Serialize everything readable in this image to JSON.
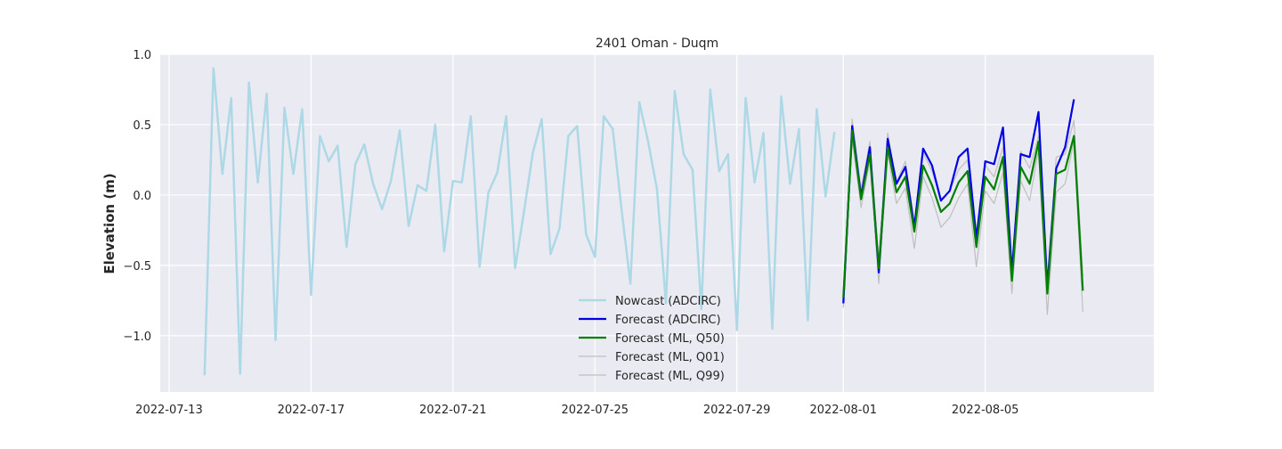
{
  "chart_data": {
    "type": "line",
    "title": "2401 Oman - Duqm",
    "xlabel": "",
    "ylabel": "Elevation (m)",
    "xlim": [
      "2022-07-12T18:00",
      "2022-08-09T18:00"
    ],
    "ylim": [
      -1.4,
      1.0
    ],
    "x_ticks": [
      "2022-07-13",
      "2022-07-17",
      "2022-07-21",
      "2022-07-25",
      "2022-07-29",
      "2022-08-01",
      "2022-08-05"
    ],
    "y_ticks": [
      -1.0,
      -0.5,
      0.0,
      0.5,
      1.0
    ],
    "y_tick_labels": [
      "−1.0",
      "−0.5",
      "0.0",
      "0.5",
      "1.0"
    ],
    "grid": true,
    "legend_position": "lower-center",
    "series": [
      {
        "name": "Nowcast (ADCIRC)",
        "color": "#add8e6",
        "style": "solid",
        "x": [
          "2022-07-14T00:00",
          "2022-07-14T06:00",
          "2022-07-14T12:00",
          "2022-07-14T18:00",
          "2022-07-15T00:00",
          "2022-07-15T06:00",
          "2022-07-15T12:00",
          "2022-07-15T18:00",
          "2022-07-16T00:00",
          "2022-07-16T06:00",
          "2022-07-16T12:00",
          "2022-07-16T18:00",
          "2022-07-17T00:00",
          "2022-07-17T06:00",
          "2022-07-17T12:00",
          "2022-07-17T18:00",
          "2022-07-18T00:00",
          "2022-07-18T06:00",
          "2022-07-18T12:00",
          "2022-07-18T18:00",
          "2022-07-19T00:00",
          "2022-07-19T06:00",
          "2022-07-19T12:00",
          "2022-07-19T18:00",
          "2022-07-20T00:00",
          "2022-07-20T06:00",
          "2022-07-20T12:00",
          "2022-07-20T18:00",
          "2022-07-21T00:00",
          "2022-07-21T06:00",
          "2022-07-21T12:00",
          "2022-07-21T18:00",
          "2022-07-22T00:00",
          "2022-07-22T06:00",
          "2022-07-22T12:00",
          "2022-07-22T18:00",
          "2022-07-23T00:00",
          "2022-07-23T06:00",
          "2022-07-23T12:00",
          "2022-07-23T18:00",
          "2022-07-24T00:00",
          "2022-07-24T06:00",
          "2022-07-24T12:00",
          "2022-07-24T18:00",
          "2022-07-25T00:00",
          "2022-07-25T06:00",
          "2022-07-25T12:00",
          "2022-07-25T18:00",
          "2022-07-26T00:00",
          "2022-07-26T06:00",
          "2022-07-26T12:00",
          "2022-07-26T18:00",
          "2022-07-27T00:00",
          "2022-07-27T06:00",
          "2022-07-27T12:00",
          "2022-07-27T18:00",
          "2022-07-28T00:00",
          "2022-07-28T06:00",
          "2022-07-28T12:00",
          "2022-07-28T18:00",
          "2022-07-29T00:00",
          "2022-07-29T06:00",
          "2022-07-29T12:00",
          "2022-07-29T18:00",
          "2022-07-30T00:00",
          "2022-07-30T06:00",
          "2022-07-30T12:00",
          "2022-07-30T18:00",
          "2022-07-31T00:00",
          "2022-07-31T06:00",
          "2022-07-31T12:00",
          "2022-07-31T18:00"
        ],
        "values": [
          -1.28,
          0.9,
          0.15,
          0.69,
          -1.27,
          0.8,
          0.09,
          0.72,
          -1.03,
          0.62,
          0.15,
          0.61,
          -0.71,
          0.42,
          0.24,
          0.35,
          -0.37,
          0.22,
          0.36,
          0.08,
          -0.1,
          0.1,
          0.46,
          -0.22,
          0.07,
          0.03,
          0.5,
          -0.4,
          0.1,
          0.09,
          0.56,
          -0.51,
          0.02,
          0.16,
          0.56,
          -0.52,
          -0.12,
          0.3,
          0.54,
          -0.42,
          -0.24,
          0.42,
          0.49,
          -0.28,
          -0.44,
          0.56,
          0.47,
          -0.1,
          -0.63,
          0.66,
          0.38,
          0.04,
          -0.77,
          0.74,
          0.29,
          0.18,
          -0.81,
          0.75,
          0.17,
          0.29,
          -0.96,
          0.69,
          0.09,
          0.44,
          -0.95,
          0.7,
          0.08,
          0.47,
          -0.89,
          0.61,
          -0.01,
          0.45
        ]
      },
      {
        "name": "Forecast (ADCIRC)",
        "color": "#0000e6",
        "style": "solid",
        "x": [
          "2022-08-01T00:00",
          "2022-08-01T06:00",
          "2022-08-01T12:00",
          "2022-08-01T18:00",
          "2022-08-02T00:00",
          "2022-08-02T06:00",
          "2022-08-02T12:00",
          "2022-08-02T18:00",
          "2022-08-03T00:00",
          "2022-08-03T06:00",
          "2022-08-03T12:00",
          "2022-08-03T18:00",
          "2022-08-04T00:00",
          "2022-08-04T06:00",
          "2022-08-04T12:00",
          "2022-08-04T18:00",
          "2022-08-05T00:00",
          "2022-08-05T06:00",
          "2022-08-05T12:00",
          "2022-08-05T18:00",
          "2022-08-06T00:00",
          "2022-08-06T06:00",
          "2022-08-06T12:00",
          "2022-08-06T18:00",
          "2022-08-07T00:00",
          "2022-08-07T06:00",
          "2022-08-07T12:00",
          "2022-08-07T18:00"
        ],
        "values": [
          -0.77,
          0.49,
          -0.01,
          0.34,
          -0.55,
          0.4,
          0.08,
          0.2,
          -0.23,
          0.33,
          0.21,
          -0.04,
          0.03,
          0.27,
          0.33,
          -0.31,
          0.24,
          0.22,
          0.48,
          -0.55,
          0.29,
          0.27,
          0.59,
          -0.66,
          0.19,
          0.34,
          0.68,
          null
        ]
      },
      {
        "name": "Forecast (ML, Q50)",
        "color": "#008000",
        "style": "solid",
        "x": [
          "2022-08-01T00:00",
          "2022-08-01T06:00",
          "2022-08-01T12:00",
          "2022-08-01T18:00",
          "2022-08-02T00:00",
          "2022-08-02T06:00",
          "2022-08-02T12:00",
          "2022-08-02T18:00",
          "2022-08-03T00:00",
          "2022-08-03T06:00",
          "2022-08-03T12:00",
          "2022-08-03T18:00",
          "2022-08-04T00:00",
          "2022-08-04T06:00",
          "2022-08-04T12:00",
          "2022-08-04T18:00",
          "2022-08-05T00:00",
          "2022-08-05T06:00",
          "2022-08-05T12:00",
          "2022-08-05T18:00",
          "2022-08-06T00:00",
          "2022-08-06T06:00",
          "2022-08-06T12:00",
          "2022-08-06T18:00",
          "2022-08-07T00:00",
          "2022-08-07T06:00",
          "2022-08-07T12:00",
          "2022-08-07T18:00"
        ],
        "values": [
          -0.73,
          0.46,
          -0.03,
          0.29,
          -0.52,
          0.34,
          0.02,
          0.13,
          -0.26,
          0.21,
          0.07,
          -0.12,
          -0.06,
          0.09,
          0.17,
          -0.37,
          0.13,
          0.04,
          0.27,
          -0.61,
          0.2,
          0.08,
          0.38,
          -0.7,
          0.15,
          0.18,
          0.42,
          -0.68
        ]
      },
      {
        "name": "Forecast (ML, Q01)",
        "color": "#bfbfbf",
        "style": "solid",
        "x": [
          "2022-08-01T00:00",
          "2022-08-01T06:00",
          "2022-08-01T12:00",
          "2022-08-01T18:00",
          "2022-08-02T00:00",
          "2022-08-02T06:00",
          "2022-08-02T12:00",
          "2022-08-02T18:00",
          "2022-08-03T00:00",
          "2022-08-03T06:00",
          "2022-08-03T12:00",
          "2022-08-03T18:00",
          "2022-08-04T00:00",
          "2022-08-04T06:00",
          "2022-08-04T12:00",
          "2022-08-04T18:00",
          "2022-08-05T00:00",
          "2022-08-05T06:00",
          "2022-08-05T12:00",
          "2022-08-05T18:00",
          "2022-08-06T00:00",
          "2022-08-06T06:00",
          "2022-08-06T12:00",
          "2022-08-06T18:00",
          "2022-08-07T00:00",
          "2022-08-07T06:00",
          "2022-08-07T12:00",
          "2022-08-07T18:00"
        ],
        "values": [
          -0.8,
          0.4,
          -0.09,
          0.24,
          -0.63,
          0.29,
          -0.06,
          0.05,
          -0.38,
          0.13,
          -0.02,
          -0.23,
          -0.16,
          -0.02,
          0.08,
          -0.51,
          0.03,
          -0.06,
          0.16,
          -0.7,
          0.1,
          -0.04,
          0.32,
          -0.85,
          0.02,
          0.08,
          0.38,
          -0.83
        ]
      },
      {
        "name": "Forecast (ML, Q99)",
        "color": "#bfbfbf",
        "style": "solid",
        "x": [
          "2022-08-01T00:00",
          "2022-08-01T06:00",
          "2022-08-01T12:00",
          "2022-08-01T18:00",
          "2022-08-02T00:00",
          "2022-08-02T06:00",
          "2022-08-02T12:00",
          "2022-08-02T18:00",
          "2022-08-03T00:00",
          "2022-08-03T06:00",
          "2022-08-03T12:00",
          "2022-08-03T18:00",
          "2022-08-04T00:00",
          "2022-08-04T06:00",
          "2022-08-04T12:00",
          "2022-08-04T18:00",
          "2022-08-05T00:00",
          "2022-08-05T06:00",
          "2022-08-05T12:00",
          "2022-08-05T18:00",
          "2022-08-06T00:00",
          "2022-08-06T06:00",
          "2022-08-06T12:00",
          "2022-08-06T18:00",
          "2022-08-07T00:00",
          "2022-08-07T06:00",
          "2022-08-07T12:00",
          "2022-08-07T18:00"
        ],
        "values": [
          -0.68,
          0.54,
          0.04,
          0.38,
          -0.45,
          0.44,
          0.09,
          0.24,
          -0.2,
          0.3,
          0.17,
          -0.03,
          0.03,
          0.18,
          0.25,
          -0.29,
          0.21,
          0.13,
          0.34,
          -0.54,
          0.31,
          0.19,
          0.42,
          -0.6,
          0.27,
          0.29,
          0.53,
          -0.58
        ]
      }
    ]
  }
}
